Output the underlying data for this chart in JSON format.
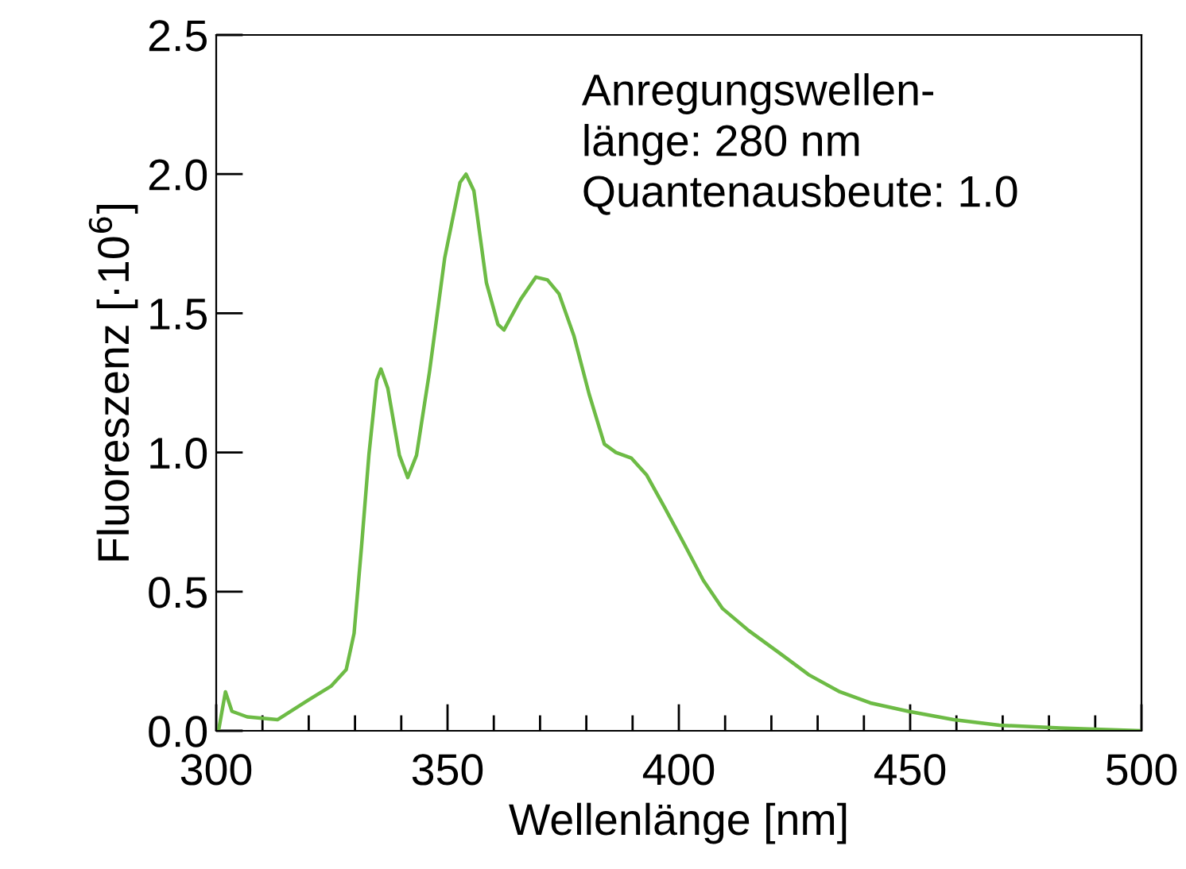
{
  "chart_data": {
    "type": "line",
    "xlabel": "Wellenlänge [nm]",
    "ylabel": "Fluoreszenz [·10$^{6}$]",
    "annotations": [
      "Anregungswellen-\nlänge: 280 nm\nQuantenausbeute: 1.0"
    ],
    "series": [
      {
        "color": "#6dbb45",
        "x": [
          300.5,
          302,
          303.4,
          306.7,
          313.3,
          319.9,
          324.8,
          328.1,
          329.8,
          331.4,
          333.0,
          334.7,
          335.6,
          337.1,
          339.6,
          341.4,
          343.3,
          346.1,
          349.4,
          352.7,
          354.0,
          355.7,
          358.4,
          360.9,
          362.2,
          365.8,
          369.1,
          371.6,
          374.1,
          377.3,
          380.6,
          383.9,
          386.4,
          389.7,
          393.0,
          397.0,
          401.2,
          405.3,
          409.4,
          415.1,
          421.7,
          428.2,
          434.8,
          441.4,
          449.6,
          459.4,
          469.3,
          482.4,
          500
        ],
        "values": [
          0,
          0.14,
          0.07,
          0.05,
          0.04,
          0.11,
          0.16,
          0.22,
          0.35,
          0.66,
          0.99,
          1.26,
          1.3,
          1.23,
          0.99,
          0.91,
          0.99,
          1.29,
          1.7,
          1.97,
          2.0,
          1.94,
          1.61,
          1.46,
          1.44,
          1.55,
          1.63,
          1.62,
          1.57,
          1.42,
          1.21,
          1.03,
          1.0,
          0.98,
          0.92,
          0.8,
          0.67,
          0.54,
          0.44,
          0.36,
          0.28,
          0.2,
          0.14,
          0.1,
          0.07,
          0.04,
          0.02,
          0.01,
          0.0
        ]
      }
    ],
    "xlim": [
      300,
      500
    ],
    "xticks": [
      300,
      350,
      400,
      450,
      500
    ],
    "ylim": [
      0,
      2.5
    ],
    "yticks": [
      {
        "value": 0,
        "label": "0.0"
      },
      {
        "value": 0.5,
        "label": "0.5"
      },
      {
        "value": 1,
        "label": "1.0"
      },
      {
        "value": 1.5,
        "label": "1.5"
      },
      {
        "value": 2,
        "label": "2.0"
      },
      {
        "value": 2.5,
        "label": "2.5"
      }
    ],
    "grid": false,
    "legend": false,
    "line_style": "solid",
    "marker": "none"
  }
}
